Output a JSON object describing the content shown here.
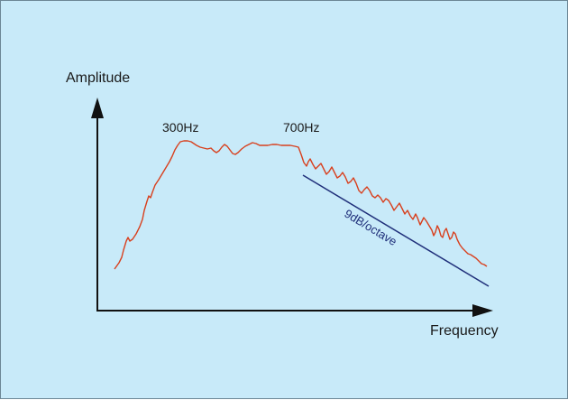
{
  "labels": {
    "y_axis": "Amplitude",
    "x_axis": "Frequency",
    "peak_low": "300Hz",
    "peak_high": "700Hz",
    "slope": "9dB/octave"
  },
  "colors": {
    "background": "#c8eaf9",
    "axis": "#111111",
    "response_curve": "#d8401e",
    "slope_line": "#1f2f7a",
    "slope_text": "#1f2f7a"
  }
}
